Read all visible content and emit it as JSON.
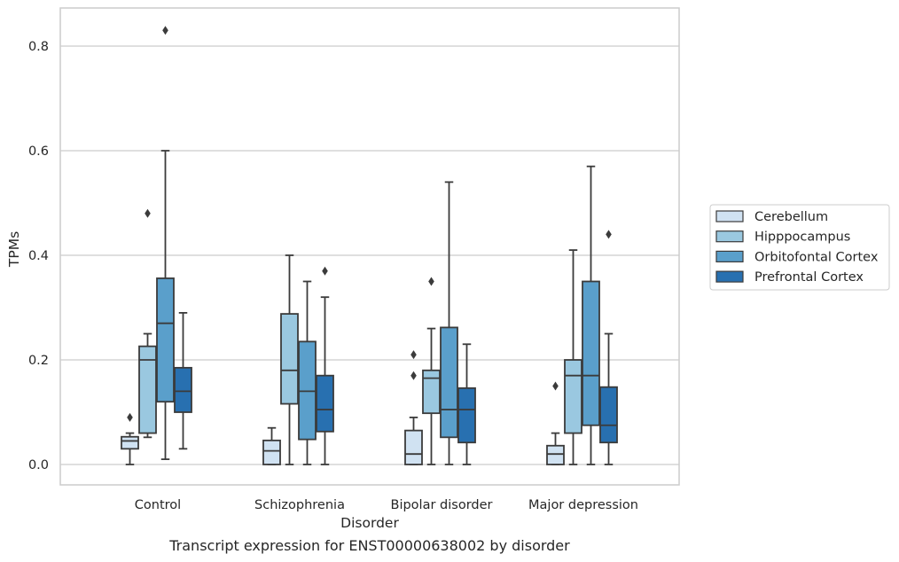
{
  "caption": "Transcript expression for ENST00000638002 by disorder",
  "chart_data": {
    "type": "box",
    "xlabel": "Disorder",
    "ylabel": "TPMs",
    "ylim": [
      -0.04,
      0.87
    ],
    "yticks": [
      0.0,
      0.2,
      0.4,
      0.6,
      0.8
    ],
    "ytick_labels": [
      "0.0",
      "0.2",
      "0.4",
      "0.6",
      "0.8"
    ],
    "grid": "horizontal",
    "legend_position": "right",
    "categories": [
      "Control",
      "Schizophrenia",
      "Bipolar disorder",
      "Major depression"
    ],
    "series": [
      {
        "name": "Cerebellum",
        "color": "#d0e2f2",
        "boxes": [
          {
            "whislo": 0.0,
            "q1": 0.03,
            "med": 0.045,
            "q3": 0.053,
            "whishi": 0.06,
            "fliers": [
              0.09
            ]
          },
          {
            "whislo": 0.0,
            "q1": 0.0,
            "med": 0.026,
            "q3": 0.046,
            "whishi": 0.07,
            "fliers": []
          },
          {
            "whislo": 0.0,
            "q1": 0.0,
            "med": 0.02,
            "q3": 0.065,
            "whishi": 0.09,
            "fliers": [
              0.17,
              0.21
            ]
          },
          {
            "whislo": 0.0,
            "q1": 0.0,
            "med": 0.02,
            "q3": 0.036,
            "whishi": 0.06,
            "fliers": [
              0.15
            ]
          }
        ]
      },
      {
        "name": "Hipppocampus",
        "color": "#9ac8e0",
        "boxes": [
          {
            "whislo": 0.052,
            "q1": 0.06,
            "med": 0.2,
            "q3": 0.226,
            "whishi": 0.25,
            "fliers": [
              0.48
            ]
          },
          {
            "whislo": 0.0,
            "q1": 0.116,
            "med": 0.18,
            "q3": 0.288,
            "whishi": 0.4,
            "fliers": []
          },
          {
            "whislo": 0.0,
            "q1": 0.098,
            "med": 0.165,
            "q3": 0.18,
            "whishi": 0.26,
            "fliers": [
              0.35
            ]
          },
          {
            "whislo": 0.0,
            "q1": 0.06,
            "med": 0.17,
            "q3": 0.2,
            "whishi": 0.41,
            "fliers": []
          }
        ]
      },
      {
        "name": "Orbitofontal Cortex",
        "color": "#5a9fcb",
        "boxes": [
          {
            "whislo": 0.01,
            "q1": 0.12,
            "med": 0.27,
            "q3": 0.356,
            "whishi": 0.6,
            "fliers": [
              0.83
            ]
          },
          {
            "whislo": 0.0,
            "q1": 0.048,
            "med": 0.14,
            "q3": 0.235,
            "whishi": 0.35,
            "fliers": []
          },
          {
            "whislo": 0.0,
            "q1": 0.052,
            "med": 0.105,
            "q3": 0.262,
            "whishi": 0.54,
            "fliers": []
          },
          {
            "whislo": 0.0,
            "q1": 0.075,
            "med": 0.17,
            "q3": 0.35,
            "whishi": 0.57,
            "fliers": []
          }
        ]
      },
      {
        "name": "Prefrontal Cortex",
        "color": "#2870b0",
        "boxes": [
          {
            "whislo": 0.03,
            "q1": 0.1,
            "med": 0.14,
            "q3": 0.185,
            "whishi": 0.29,
            "fliers": []
          },
          {
            "whislo": 0.0,
            "q1": 0.063,
            "med": 0.105,
            "q3": 0.17,
            "whishi": 0.32,
            "fliers": [
              0.37
            ]
          },
          {
            "whislo": 0.0,
            "q1": 0.042,
            "med": 0.105,
            "q3": 0.146,
            "whishi": 0.23,
            "fliers": []
          },
          {
            "whislo": 0.0,
            "q1": 0.042,
            "med": 0.075,
            "q3": 0.148,
            "whishi": 0.25,
            "fliers": [
              0.44
            ]
          }
        ]
      }
    ]
  }
}
